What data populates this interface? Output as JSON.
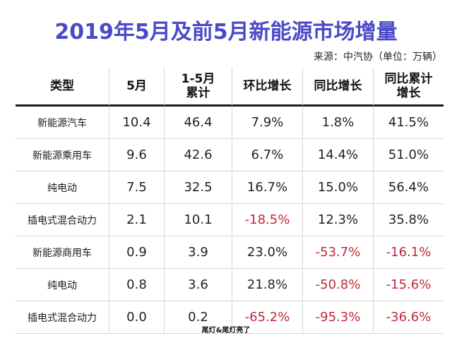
{
  "title": "2019年5月及前5月新能源市场增量",
  "source": "来源：中汽协（单位：万辆）",
  "headers": {
    "type": "类型",
    "may": "5月",
    "ytd_line1": "1-5月",
    "ytd_line2": "累计",
    "mom": "环比增长",
    "yoy": "同比增长",
    "ytd_yoy_line1": "同比累计",
    "ytd_yoy_line2": "增长"
  },
  "rows": [
    {
      "type": "新能源汽车",
      "may": "10.4",
      "ytd": "46.4",
      "mom": "7.9%",
      "yoy": "1.8%",
      "ytd_yoy": "41.5%"
    },
    {
      "type": "新能源乘用车",
      "may": "9.6",
      "ytd": "42.6",
      "mom": "6.7%",
      "yoy": "14.4%",
      "ytd_yoy": "51.0%"
    },
    {
      "type": "纯电动",
      "may": "7.5",
      "ytd": "32.5",
      "mom": "16.7%",
      "yoy": "15.0%",
      "ytd_yoy": "56.4%"
    },
    {
      "type": "插电式混合动力",
      "may": "2.1",
      "ytd": "10.1",
      "mom": "-18.5%",
      "yoy": "12.3%",
      "ytd_yoy": "35.8%"
    },
    {
      "type": "新能源商用车",
      "may": "0.9",
      "ytd": "3.9",
      "mom": "23.0%",
      "yoy": "-53.7%",
      "ytd_yoy": "-16.1%"
    },
    {
      "type": "纯电动",
      "may": "0.8",
      "ytd": "3.6",
      "mom": "21.8%",
      "yoy": "-50.8%",
      "ytd_yoy": "-15.6%"
    },
    {
      "type": "插电式混合动力",
      "may": "0.0",
      "ytd": "0.2",
      "mom": "-65.2%",
      "yoy": "-95.3%",
      "ytd_yoy": "-36.6%"
    }
  ],
  "colors": {
    "title": "#4a4ac8",
    "negative": "#c0283a",
    "text": "#222222"
  },
  "footer": "尾灯&尾灯亮了"
}
